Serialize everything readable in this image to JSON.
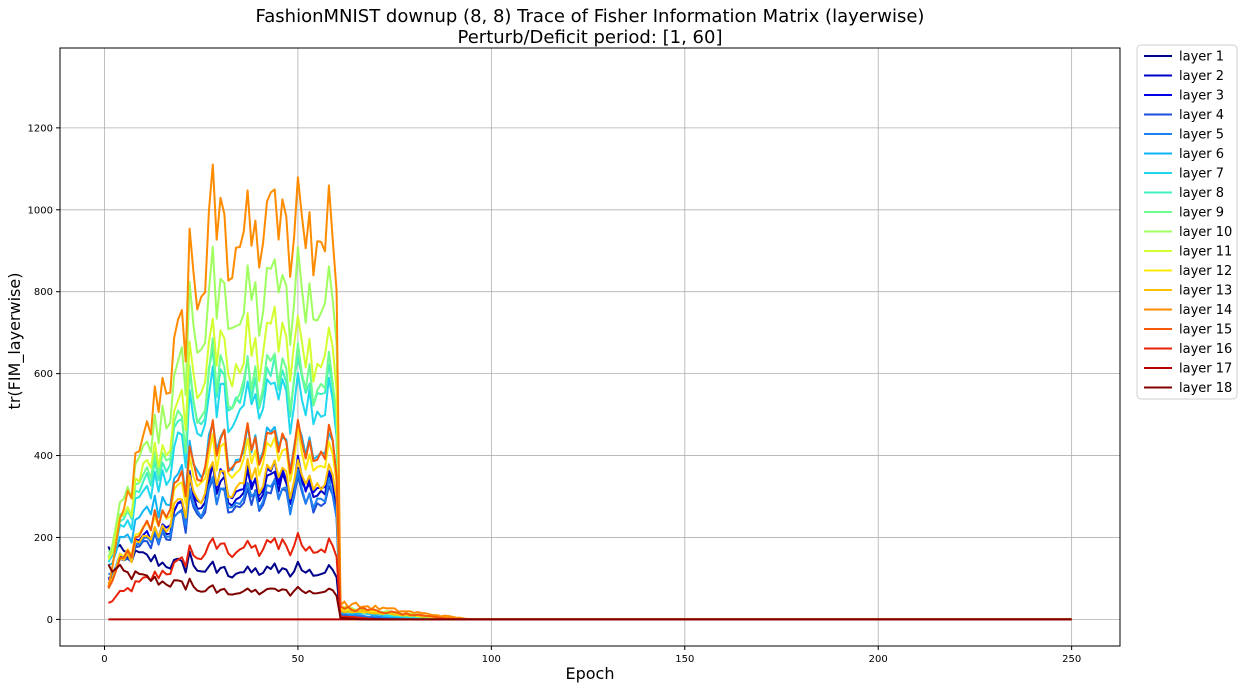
{
  "chart_data": {
    "type": "line",
    "title": "FashionMNIST downup (8, 8) Trace of Fisher Information Matrix (layerwise)",
    "subtitle": "Perturb/Deficit period: [1, 60]",
    "xlabel": "Epoch",
    "ylabel": "tr(FIM_layerwise)",
    "xlim": [
      -11.5,
      262.5
    ],
    "ylim": [
      -65,
      1395
    ],
    "xticks": [
      0,
      50,
      100,
      150,
      200,
      250
    ],
    "yticks": [
      0,
      200,
      400,
      600,
      800,
      1000,
      1200
    ],
    "grid": true,
    "legend_position": "outside-top-right",
    "x_range": [
      1,
      250
    ],
    "deficit_end_epoch": 60,
    "series": [
      {
        "name": "layer 1",
        "color": "#00008b",
        "start": 180,
        "level": 120,
        "tail": 3,
        "decay_end": 68
      },
      {
        "name": "layer 2",
        "color": "#0000c4",
        "start": 95,
        "level": 330,
        "tail": 10,
        "decay_end": 72
      },
      {
        "name": "layer 3",
        "color": "#0000e8",
        "start": 100,
        "level": 340,
        "tail": 12,
        "decay_end": 74
      },
      {
        "name": "layer 4",
        "color": "#1f4fd8",
        "start": 100,
        "level": 300,
        "tail": 12,
        "decay_end": 76
      },
      {
        "name": "layer 5",
        "color": "#1e7ff0",
        "start": 110,
        "level": 310,
        "tail": 13,
        "decay_end": 78
      },
      {
        "name": "layer 6",
        "color": "#10b4f5",
        "start": 130,
        "level": 430,
        "tail": 20,
        "decay_end": 82
      },
      {
        "name": "layer 7",
        "color": "#1fd8ee",
        "start": 140,
        "level": 540,
        "tail": 22,
        "decay_end": 84
      },
      {
        "name": "layer 8",
        "color": "#40f0c0",
        "start": 150,
        "level": 580,
        "tail": 25,
        "decay_end": 86
      },
      {
        "name": "layer 9",
        "color": "#6cff90",
        "start": 160,
        "level": 600,
        "tail": 28,
        "decay_end": 88
      },
      {
        "name": "layer 10",
        "color": "#a0ff60",
        "start": 150,
        "level": 800,
        "tail": 30,
        "decay_end": 90
      },
      {
        "name": "layer 11",
        "color": "#d2ff30",
        "start": 145,
        "level": 670,
        "tail": 28,
        "decay_end": 90
      },
      {
        "name": "layer 12",
        "color": "#ffe90c",
        "start": 90,
        "level": 400,
        "tail": 25,
        "decay_end": 92
      },
      {
        "name": "layer 13",
        "color": "#ffc000",
        "start": 90,
        "level": 350,
        "tail": 22,
        "decay_end": 93
      },
      {
        "name": "layer 14",
        "color": "#ff8c00",
        "start": 80,
        "level": 970,
        "tail": 40,
        "decay_end": 94
      },
      {
        "name": "layer 15",
        "color": "#f55a0a",
        "start": 75,
        "level": 430,
        "tail": 30,
        "decay_end": 90
      },
      {
        "name": "layer 16",
        "color": "#e8220a",
        "start": 40,
        "level": 180,
        "tail": 8,
        "decay_end": 70
      },
      {
        "name": "layer 17",
        "color": "#b40000",
        "start": 0,
        "level": 0,
        "tail": 0,
        "decay_end": 61
      },
      {
        "name": "layer 18",
        "color": "#800000",
        "start": 130,
        "level": 70,
        "tail": 4,
        "decay_end": 66
      }
    ]
  }
}
